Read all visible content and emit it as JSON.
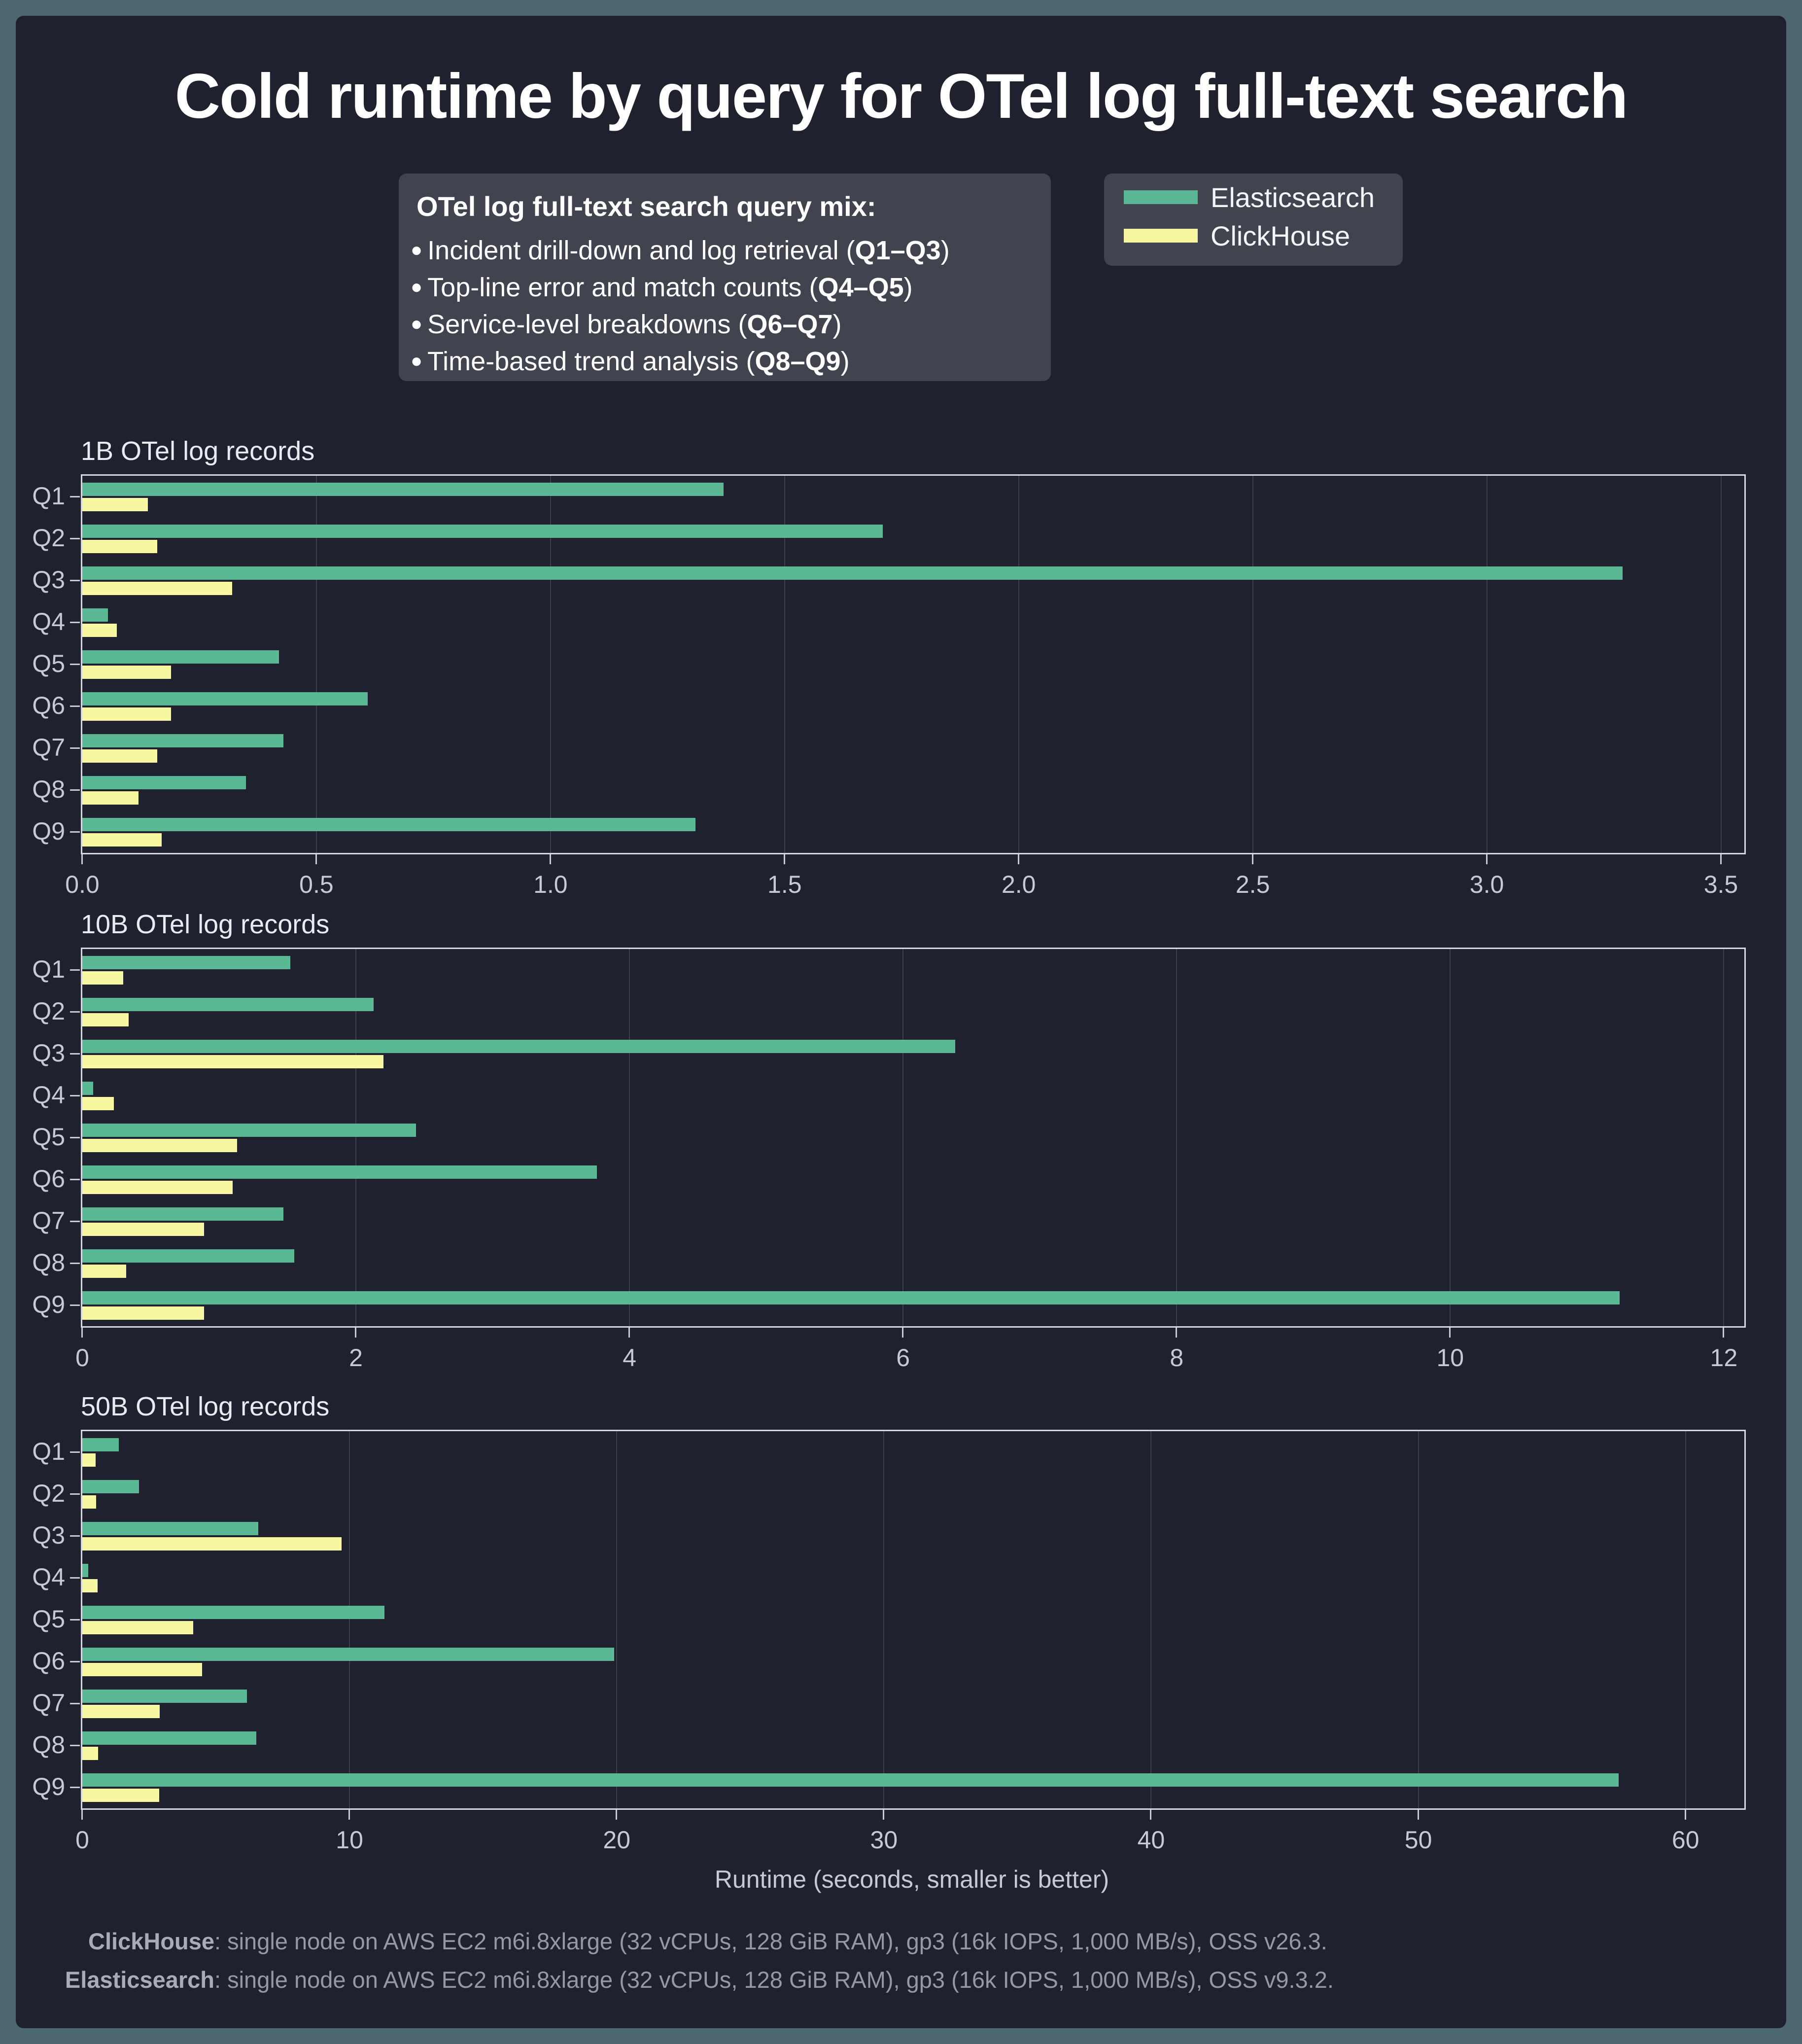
{
  "title": "Cold runtime by query for OTel log full-text search",
  "colors": {
    "outer_background": "#4d6773",
    "card_background": "#1f222e",
    "panel_background": "#41444f",
    "elasticsearch": "#5ab994",
    "clickhouse": "#f8f7a1",
    "gridline": "#3b3f4e",
    "axis": "#d4d7de"
  },
  "query_mix": {
    "heading_bold": "OTel log full-text search query mix",
    "heading_suffix": ":",
    "bullets": [
      {
        "prefix": "Incident drill-down and log retrieval (",
        "bold": "Q1–Q3",
        "suffix": ")"
      },
      {
        "prefix": "Top-line error and match counts (",
        "bold": "Q4–Q5",
        "suffix": ")"
      },
      {
        "prefix": "Service-level breakdowns (",
        "bold": "Q6–Q7",
        "suffix": ")"
      },
      {
        "prefix": "Time-based trend analysis (",
        "bold": "Q8–Q9",
        "suffix": ")"
      }
    ]
  },
  "legend": {
    "items": [
      {
        "label": "Elasticsearch",
        "color": "#5ab994"
      },
      {
        "label": "ClickHouse",
        "color": "#f8f7a1"
      }
    ]
  },
  "xlabel": "Runtime (seconds, smaller is better)",
  "footnotes": [
    {
      "name": "ClickHouse",
      "text": ": single node on AWS EC2 m6i.8xlarge (32 vCPUs, 128 GiB RAM), gp3 (16k IOPS, 1,000 MB/s), OSS v26.3."
    },
    {
      "name": "Elasticsearch",
      "text": ": single node on AWS EC2 m6i.8xlarge (32 vCPUs, 128 GiB RAM), gp3 (16k IOPS, 1,000 MB/s), OSS v9.3.2."
    }
  ],
  "chart_data": [
    {
      "type": "bar",
      "orientation": "horizontal",
      "title": "1B OTel log records",
      "categories": [
        "Q1",
        "Q2",
        "Q3",
        "Q4",
        "Q5",
        "Q6",
        "Q7",
        "Q8",
        "Q9"
      ],
      "series": [
        {
          "name": "Elasticsearch",
          "color": "#5ab994",
          "values": [
            1.37,
            1.71,
            3.29,
            0.055,
            0.42,
            0.61,
            0.43,
            0.35,
            1.31
          ]
        },
        {
          "name": "ClickHouse",
          "color": "#f8f7a1",
          "values": [
            0.14,
            0.16,
            0.32,
            0.074,
            0.19,
            0.19,
            0.16,
            0.12,
            0.17
          ]
        }
      ],
      "xlabel": "",
      "ylabel": "",
      "xlim": [
        0,
        3.55
      ],
      "ticks": [
        0,
        0.5,
        1.0,
        1.5,
        2.0,
        2.5,
        3.0,
        3.5
      ],
      "tick_labels": [
        "0.0",
        "0.5",
        "1.0",
        "1.5",
        "2.0",
        "2.5",
        "3.0",
        "3.5"
      ],
      "grid": true,
      "legend_position": "top-right-figure"
    },
    {
      "type": "bar",
      "orientation": "horizontal",
      "title": "10B OTel log records",
      "categories": [
        "Q1",
        "Q2",
        "Q3",
        "Q4",
        "Q5",
        "Q6",
        "Q7",
        "Q8",
        "Q9"
      ],
      "series": [
        {
          "name": "Elasticsearch",
          "color": "#5ab994",
          "values": [
            1.52,
            2.13,
            6.38,
            0.08,
            2.44,
            3.76,
            1.47,
            1.55,
            11.24
          ]
        },
        {
          "name": "ClickHouse",
          "color": "#f8f7a1",
          "values": [
            0.3,
            0.34,
            2.2,
            0.23,
            1.13,
            1.1,
            0.89,
            0.32,
            0.89
          ]
        }
      ],
      "xlabel": "",
      "ylabel": "",
      "xlim": [
        0,
        12.15
      ],
      "ticks": [
        0,
        2,
        4,
        6,
        8,
        10,
        12
      ],
      "tick_labels": [
        "0",
        "2",
        "4",
        "6",
        "8",
        "10",
        "12"
      ],
      "grid": true,
      "legend_position": "none"
    },
    {
      "type": "bar",
      "orientation": "horizontal",
      "title": "50B OTel log records",
      "categories": [
        "Q1",
        "Q2",
        "Q3",
        "Q4",
        "Q5",
        "Q6",
        "Q7",
        "Q8",
        "Q9"
      ],
      "series": [
        {
          "name": "Elasticsearch",
          "color": "#5ab994",
          "values": [
            1.37,
            2.13,
            6.59,
            0.22,
            11.3,
            19.9,
            6.16,
            6.52,
            57.5
          ]
        },
        {
          "name": "ClickHouse",
          "color": "#f8f7a1",
          "values": [
            0.49,
            0.52,
            9.7,
            0.57,
            4.15,
            4.49,
            2.9,
            0.59,
            2.88
          ]
        }
      ],
      "xlabel": "Runtime (seconds, smaller is better)",
      "ylabel": "",
      "xlim": [
        0,
        62.2
      ],
      "ticks": [
        0,
        10,
        20,
        30,
        40,
        50,
        60
      ],
      "tick_labels": [
        "0",
        "10",
        "20",
        "30",
        "40",
        "50",
        "60"
      ],
      "grid": true,
      "legend_position": "none"
    }
  ]
}
